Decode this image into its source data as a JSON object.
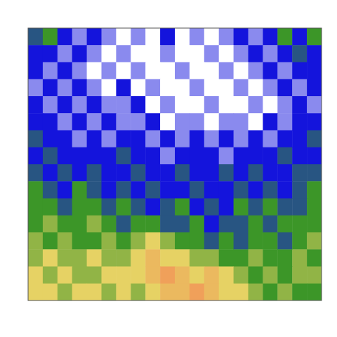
{
  "chart_data": {
    "type": "heatmap",
    "tick_labels": false,
    "cells": [
      [
        1.5,
        2,
        1,
        0.5,
        1,
        0.5,
        0,
        0.5,
        0,
        1,
        0,
        0.5,
        0,
        0.5,
        1,
        0.5,
        1,
        2,
        1,
        2
      ],
      [
        1,
        1,
        0.5,
        1,
        0.5,
        0,
        0.5,
        0,
        0,
        0.5,
        0,
        0,
        0.5,
        0,
        0.5,
        1,
        0.5,
        1,
        1.5,
        1
      ],
      [
        1,
        0.5,
        1,
        0.5,
        0,
        0.5,
        0,
        0.5,
        0,
        0,
        0.5,
        0,
        0,
        0.5,
        0,
        0.5,
        1,
        0.5,
        1,
        1
      ],
      [
        0.5,
        1,
        0.5,
        1,
        0.5,
        0,
        1,
        0,
        0.5,
        0,
        0,
        0.5,
        0,
        0,
        0.5,
        0,
        0.5,
        1,
        0.5,
        1
      ],
      [
        1,
        0.5,
        1,
        0.5,
        1,
        0.5,
        0.5,
        1,
        0,
        0.5,
        0,
        0,
        0.5,
        0,
        0,
        0.5,
        0,
        0.5,
        1,
        0.5
      ],
      [
        1,
        1,
        0.5,
        1,
        0.5,
        1,
        0.5,
        0.5,
        1,
        0,
        0.5,
        0.5,
        0,
        0.5,
        0.5,
        0,
        1,
        0.5,
        1,
        1
      ],
      [
        1.5,
        1,
        1,
        0.5,
        1,
        0.5,
        1,
        1,
        0.5,
        1,
        0.5,
        1,
        0.5,
        1,
        0.5,
        1,
        0.5,
        1,
        1,
        1.5
      ],
      [
        1,
        1.5,
        1,
        1,
        1,
        1,
        1.5,
        1,
        1,
        0.5,
        1,
        1,
        1,
        0.5,
        1,
        1,
        1,
        1.5,
        1,
        1
      ],
      [
        1.5,
        1,
        1.5,
        1,
        1.5,
        1,
        1,
        1.5,
        1,
        1,
        1.5,
        1,
        1,
        1.5,
        1,
        1.5,
        1,
        1,
        1.5,
        1.5
      ],
      [
        2,
        1.5,
        1,
        2,
        1.5,
        1,
        1.5,
        1,
        1.5,
        1,
        1,
        1.5,
        1,
        1,
        1.5,
        1,
        1.5,
        1,
        1.5,
        2
      ],
      [
        2,
        2,
        1.5,
        2,
        2,
        1.5,
        2,
        1.5,
        1,
        1.5,
        2,
        1,
        1.5,
        1,
        2,
        1.5,
        2,
        1.5,
        1.5,
        2
      ],
      [
        2,
        2.5,
        2,
        2,
        2.5,
        2,
        1.5,
        2,
        2,
        1.5,
        1.5,
        2,
        1,
        1.5,
        1.5,
        2,
        1.5,
        2,
        2,
        2
      ],
      [
        2.5,
        2,
        2.5,
        2,
        2,
        2.5,
        2,
        2.5,
        3,
        2.5,
        2,
        2,
        1.5,
        2,
        1.5,
        2,
        2,
        1.5,
        2,
        2.5
      ],
      [
        2.5,
        3,
        2.5,
        2.5,
        3,
        2.5,
        2.5,
        3,
        3.5,
        3,
        3,
        2.5,
        2.5,
        2,
        2,
        2.5,
        2,
        2,
        2.5,
        2
      ],
      [
        3,
        2.5,
        3,
        2.5,
        2.5,
        3,
        3,
        3,
        3.5,
        4,
        3.5,
        3,
        3.5,
        3,
        2.5,
        2,
        2.5,
        2,
        2.5,
        2.5
      ],
      [
        3,
        3,
        2.5,
        3,
        3,
        2.5,
        3,
        2.5,
        3,
        3.5,
        3.5,
        4,
        3.5,
        3,
        3,
        2.5,
        2,
        2.5,
        2,
        2
      ]
    ]
  }
}
